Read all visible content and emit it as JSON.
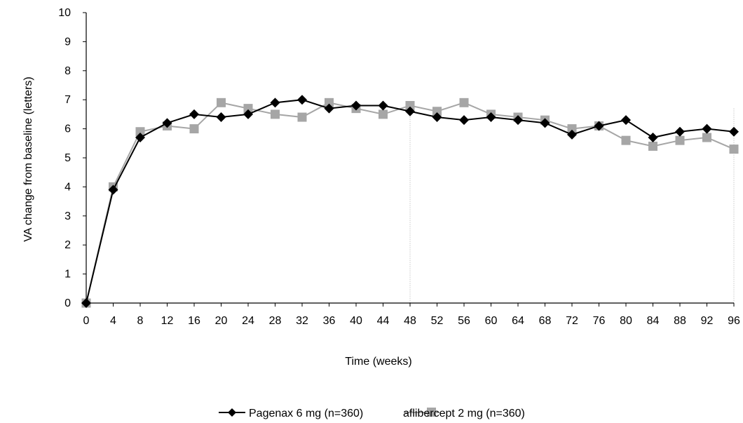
{
  "chart_data": {
    "type": "line",
    "title": "",
    "xlabel": "Time (weeks)",
    "ylabel": "VA change from baseline (letters)",
    "x": [
      0,
      4,
      8,
      12,
      16,
      20,
      24,
      28,
      32,
      36,
      40,
      44,
      48,
      52,
      56,
      60,
      64,
      68,
      72,
      76,
      80,
      84,
      88,
      92,
      96
    ],
    "xlim": [
      0,
      96
    ],
    "ylim": [
      0,
      10
    ],
    "yticks": [
      0,
      1,
      2,
      3,
      4,
      5,
      6,
      7,
      8,
      9,
      10
    ],
    "grid": false,
    "reference_lines_x": [
      48,
      96
    ],
    "legend_position": "bottom",
    "series": [
      {
        "name": "Pagenax 6 mg (n=360)",
        "color": "#000000",
        "marker": "diamond",
        "values": [
          0,
          3.9,
          5.7,
          6.2,
          6.5,
          6.4,
          6.5,
          6.9,
          7.0,
          6.7,
          6.8,
          6.8,
          6.6,
          6.4,
          6.3,
          6.4,
          6.3,
          6.2,
          5.8,
          6.1,
          6.3,
          5.7,
          5.9,
          6.0,
          5.9
        ]
      },
      {
        "name": "aflibercept 2 mg (n=360)",
        "color": "#a6a6a6",
        "marker": "square",
        "values": [
          0,
          4.0,
          5.9,
          6.1,
          6.0,
          6.9,
          6.7,
          6.5,
          6.4,
          6.9,
          6.7,
          6.5,
          6.8,
          6.6,
          6.9,
          6.5,
          6.4,
          6.3,
          6.0,
          6.1,
          5.6,
          5.4,
          5.6,
          5.7,
          5.3
        ]
      }
    ]
  }
}
